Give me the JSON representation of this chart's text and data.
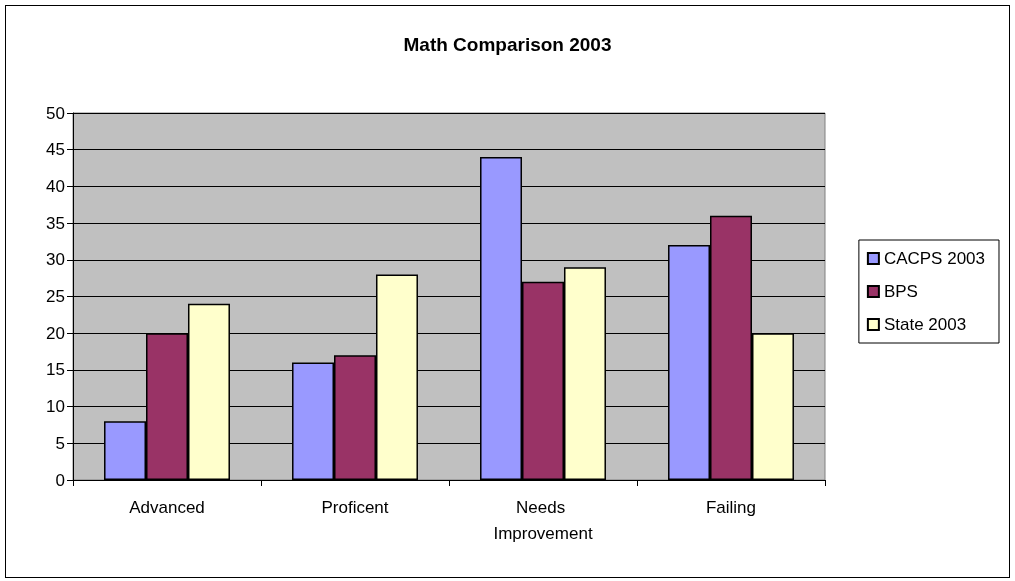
{
  "chart_data": {
    "type": "bar",
    "title": "Math Comparison 2003",
    "categories": [
      "Advanced",
      "Proficent",
      "Needs Improvement",
      "Failing"
    ],
    "series": [
      {
        "name": "CACPS 2003",
        "color": "#9999ff",
        "values": [
          8,
          16,
          44,
          32
        ]
      },
      {
        "name": "BPS",
        "color": "#993366",
        "values": [
          20,
          17,
          27,
          36
        ]
      },
      {
        "name": "State 2003",
        "color": "#ffffcc",
        "values": [
          24,
          28,
          29,
          20
        ]
      }
    ],
    "ylim": [
      0,
      50
    ],
    "yticks": [
      0,
      5,
      10,
      15,
      20,
      25,
      30,
      35,
      40,
      45,
      50
    ],
    "grid": "y",
    "legend": "right"
  }
}
